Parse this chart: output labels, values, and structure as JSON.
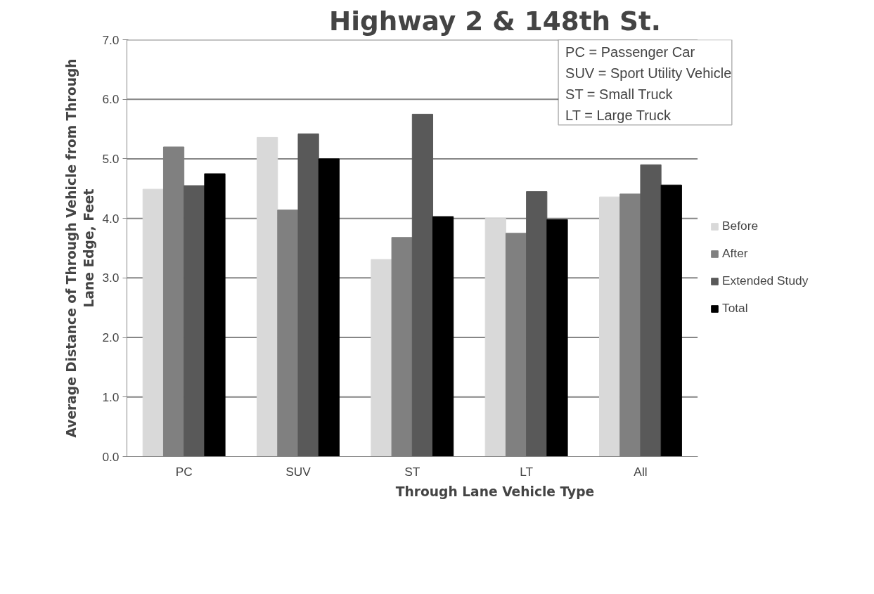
{
  "chart_data": {
    "type": "bar",
    "title": "Highway 2 & 148th St.",
    "xlabel": "Through Lane Vehicle Type",
    "ylabel": "Average Distance of Through Vehicle from Through Lane Edge, Feet",
    "categories": [
      "PC",
      "SUV",
      "ST",
      "LT",
      "All"
    ],
    "series": [
      {
        "name": "Before",
        "color": "#d9d9d9",
        "values": [
          4.49,
          5.36,
          3.31,
          4.0,
          4.36
        ]
      },
      {
        "name": "After",
        "color": "#808080",
        "values": [
          5.2,
          4.14,
          3.68,
          3.75,
          4.41
        ]
      },
      {
        "name": "Extended Study",
        "color": "#595959",
        "values": [
          4.55,
          5.42,
          5.75,
          4.45,
          4.9
        ]
      },
      {
        "name": "Total",
        "color": "#000000",
        "values": [
          4.75,
          5.0,
          4.03,
          3.98,
          4.56
        ]
      }
    ],
    "ylim": [
      0,
      7
    ],
    "yticks": [
      {
        "value": 0,
        "label": "0.0"
      },
      {
        "value": 1,
        "label": "1.0"
      },
      {
        "value": 2,
        "label": "2.0"
      },
      {
        "value": 3,
        "label": "3.0"
      },
      {
        "value": 4,
        "label": "4.0"
      },
      {
        "value": 5,
        "label": "5.0"
      },
      {
        "value": 6,
        "label": "6.0"
      },
      {
        "value": 7,
        "label": "7.0"
      }
    ],
    "grid": "y",
    "legend": "right",
    "annotations": [
      "PC = Passenger Car",
      "SUV = Sport Utility Vehicle",
      "ST = Small Truck",
      "LT = Large Truck"
    ]
  }
}
